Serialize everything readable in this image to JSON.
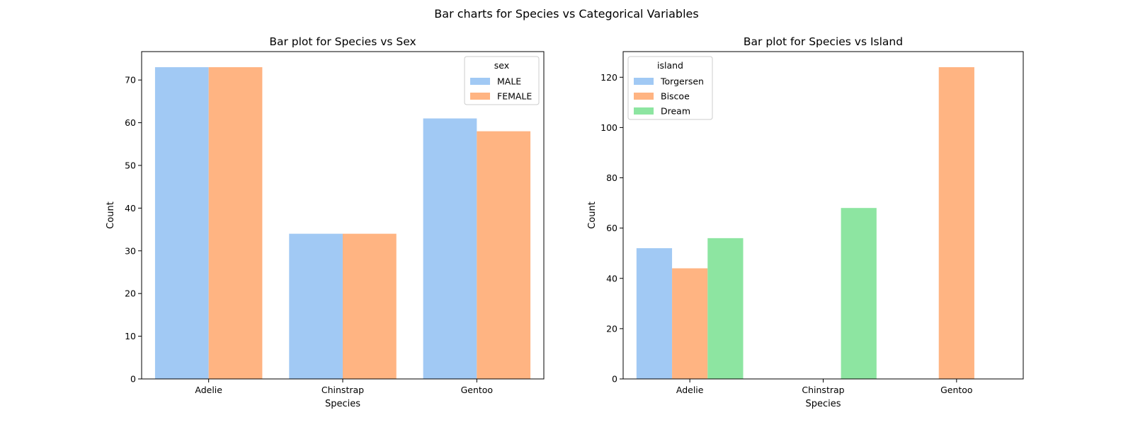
{
  "suptitle": "Bar charts for Species vs Categorical Variables",
  "chart_data": [
    {
      "type": "bar",
      "title": "Bar plot for Species vs Sex",
      "xlabel": "Species",
      "ylabel": "Count",
      "categories": [
        "Adelie",
        "Chinstrap",
        "Gentoo"
      ],
      "ylim": [
        0,
        76.65
      ],
      "yticks": [
        0,
        10,
        20,
        30,
        40,
        50,
        60,
        70
      ],
      "legend": {
        "title": "sex",
        "placement": "upper right"
      },
      "series": [
        {
          "name": "MALE",
          "color": "#a1c9f4",
          "values": [
            73,
            34,
            61
          ]
        },
        {
          "name": "FEMALE",
          "color": "#ffb482",
          "values": [
            73,
            34,
            58
          ]
        }
      ]
    },
    {
      "type": "bar",
      "title": "Bar plot for Species vs Island",
      "xlabel": "Species",
      "ylabel": "Count",
      "categories": [
        "Adelie",
        "Chinstrap",
        "Gentoo"
      ],
      "ylim": [
        0,
        130.2
      ],
      "yticks": [
        0,
        20,
        40,
        60,
        80,
        100,
        120
      ],
      "legend": {
        "title": "island",
        "placement": "upper left"
      },
      "series": [
        {
          "name": "Torgersen",
          "color": "#a1c9f4",
          "values": [
            52,
            0,
            0
          ]
        },
        {
          "name": "Biscoe",
          "color": "#ffb482",
          "values": [
            44,
            0,
            124
          ]
        },
        {
          "name": "Dream",
          "color": "#8de5a1",
          "values": [
            56,
            68,
            0
          ]
        }
      ]
    }
  ]
}
